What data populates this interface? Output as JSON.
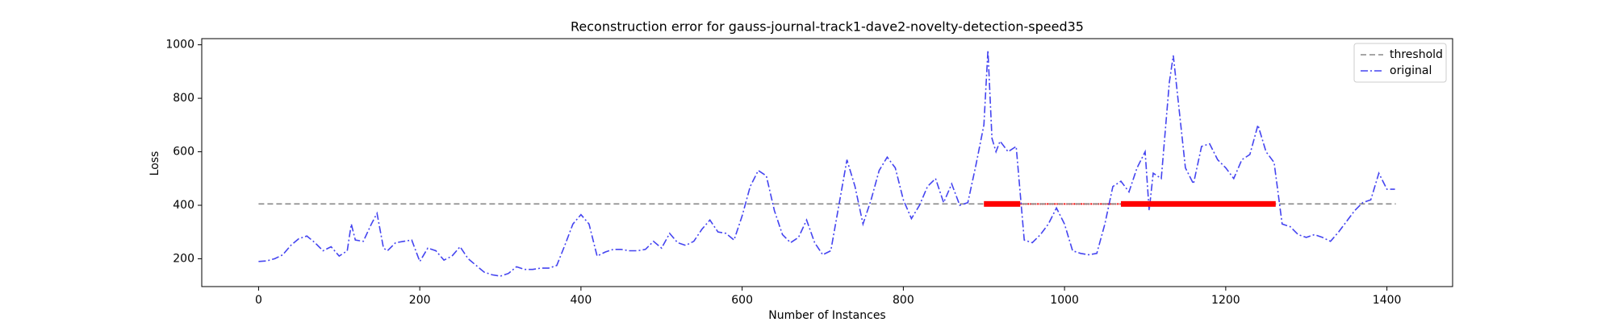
{
  "chart_data": {
    "type": "line",
    "title": "Reconstruction error for gauss-journal-track1-dave2-novelty-detection-speed35",
    "x_label": "Number of Instances",
    "y_label": "Loss",
    "xlim": [
      -70.5,
      1481.5
    ],
    "ylim": [
      96,
      1023
    ],
    "xticks": [
      0,
      200,
      400,
      600,
      800,
      1000,
      1200,
      1400
    ],
    "yticks": [
      200,
      400,
      600,
      800,
      1000
    ],
    "legend": "upper right",
    "grid": false,
    "series": [
      {
        "name": "threshold",
        "color": "#888888",
        "style": "dashed",
        "x": [
          0,
          1411
        ],
        "values": [
          405,
          405
        ]
      },
      {
        "name": "original",
        "color": "#4444f0",
        "style": "dashdot",
        "x": [
          0,
          10,
          20,
          30,
          40,
          50,
          60,
          70,
          80,
          90,
          100,
          110,
          115,
          120,
          130,
          140,
          147,
          155,
          160,
          170,
          180,
          190,
          200,
          210,
          220,
          230,
          240,
          250,
          260,
          270,
          280,
          290,
          300,
          310,
          320,
          330,
          340,
          350,
          360,
          370,
          380,
          390,
          400,
          410,
          420,
          430,
          440,
          450,
          460,
          470,
          480,
          490,
          500,
          510,
          520,
          530,
          540,
          550,
          560,
          570,
          580,
          590,
          600,
          610,
          620,
          630,
          640,
          650,
          660,
          670,
          680,
          690,
          700,
          710,
          720,
          730,
          740,
          750,
          760,
          770,
          780,
          790,
          800,
          810,
          820,
          830,
          840,
          850,
          860,
          870,
          880,
          890,
          900,
          905,
          910,
          915,
          920,
          930,
          940,
          950,
          960,
          970,
          980,
          990,
          1000,
          1010,
          1020,
          1030,
          1040,
          1050,
          1060,
          1070,
          1080,
          1090,
          1100,
          1105,
          1110,
          1120,
          1130,
          1135,
          1140,
          1150,
          1160,
          1170,
          1180,
          1190,
          1200,
          1210,
          1220,
          1230,
          1240,
          1250,
          1260,
          1270,
          1280,
          1290,
          1300,
          1310,
          1320,
          1330,
          1340,
          1350,
          1360,
          1370,
          1380,
          1390,
          1400,
          1410
        ],
        "values": [
          190,
          192,
          200,
          215,
          250,
          275,
          285,
          260,
          230,
          245,
          210,
          230,
          330,
          270,
          265,
          330,
          370,
          240,
          230,
          260,
          265,
          270,
          190,
          240,
          230,
          195,
          210,
          245,
          200,
          175,
          150,
          140,
          135,
          145,
          170,
          160,
          160,
          165,
          165,
          175,
          250,
          330,
          365,
          330,
          210,
          225,
          235,
          235,
          230,
          230,
          235,
          265,
          240,
          295,
          260,
          250,
          265,
          310,
          345,
          300,
          295,
          270,
          360,
          470,
          530,
          510,
          380,
          290,
          260,
          280,
          345,
          260,
          215,
          230,
          400,
          570,
          470,
          330,
          420,
          530,
          580,
          540,
          420,
          350,
          400,
          470,
          500,
          410,
          480,
          400,
          410,
          550,
          700,
          980,
          650,
          600,
          640,
          600,
          620,
          270,
          260,
          290,
          330,
          390,
          330,
          230,
          220,
          215,
          220,
          330,
          470,
          490,
          450,
          540,
          600,
          380,
          520,
          500,
          860,
          960,
          820,
          540,
          480,
          620,
          630,
          570,
          540,
          500,
          570,
          590,
          700,
          600,
          560,
          330,
          320,
          290,
          280,
          290,
          280,
          265,
          300,
          340,
          380,
          410,
          420,
          520,
          460,
          460
        ]
      }
    ],
    "anomaly_color": "#ff0000",
    "anomaly_ranges": [
      [
        900,
        945
      ],
      [
        1070,
        1262
      ]
    ]
  }
}
